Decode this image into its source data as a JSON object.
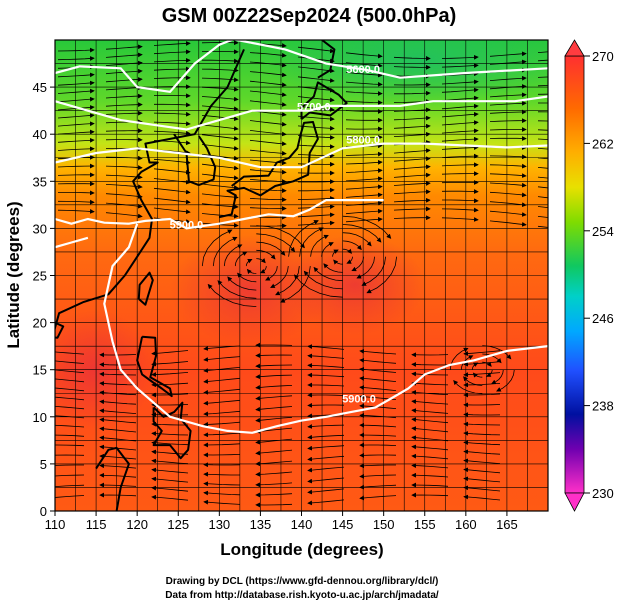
{
  "title": "GSM 00Z22Sep2024 (500.0hPa)",
  "xlabel": "Longitude (degrees)",
  "ylabel": "Latitude  (degrees)",
  "credits": [
    "Drawing by DCL (https://www.gfd-dennou.org/library/dcl/)",
    "Data from http://database.rish.kyoto-u.ac.jp/arch/jmadata/"
  ],
  "map": {
    "lon_range": [
      110,
      170
    ],
    "lat_range": [
      0,
      50
    ],
    "x_ticks": [
      110,
      115,
      120,
      125,
      130,
      135,
      140,
      145,
      150,
      155,
      160,
      165
    ],
    "y_ticks": [
      0,
      5,
      10,
      15,
      20,
      25,
      30,
      35,
      40,
      45
    ],
    "grid": true,
    "field_colors": {
      "north_green": "#3fcf3f",
      "mid_yellow": "#c8e614",
      "orange": "#ff8a00",
      "red": "#ff4a1a",
      "warm_core": "#f03a2a",
      "land_line": "#000000",
      "contour_line": "#ffffff"
    },
    "contours": [
      {
        "label": "5600.0",
        "lon": 147.5,
        "lat": 46.5
      },
      {
        "label": "5700.0",
        "lon": 141.5,
        "lat": 42.5
      },
      {
        "label": "5800.0",
        "lon": 147.5,
        "lat": 39.0
      },
      {
        "label": "5900.0",
        "lon": 126.0,
        "lat": 30.0
      },
      {
        "label": "5900.0",
        "lon": 147.0,
        "lat": 11.5
      }
    ]
  },
  "colorbar": {
    "min": 230,
    "max": 270,
    "tick_labels": [
      "270",
      "262",
      "254",
      "246",
      "238",
      "230"
    ],
    "colors": [
      "#ff3030",
      "#ff8c00",
      "#ffd700",
      "#7fdf00",
      "#20c040",
      "#00d0c0",
      "#00a0ff",
      "#2040ff",
      "#0000a0",
      "#a000c0",
      "#ff30c0"
    ]
  }
}
